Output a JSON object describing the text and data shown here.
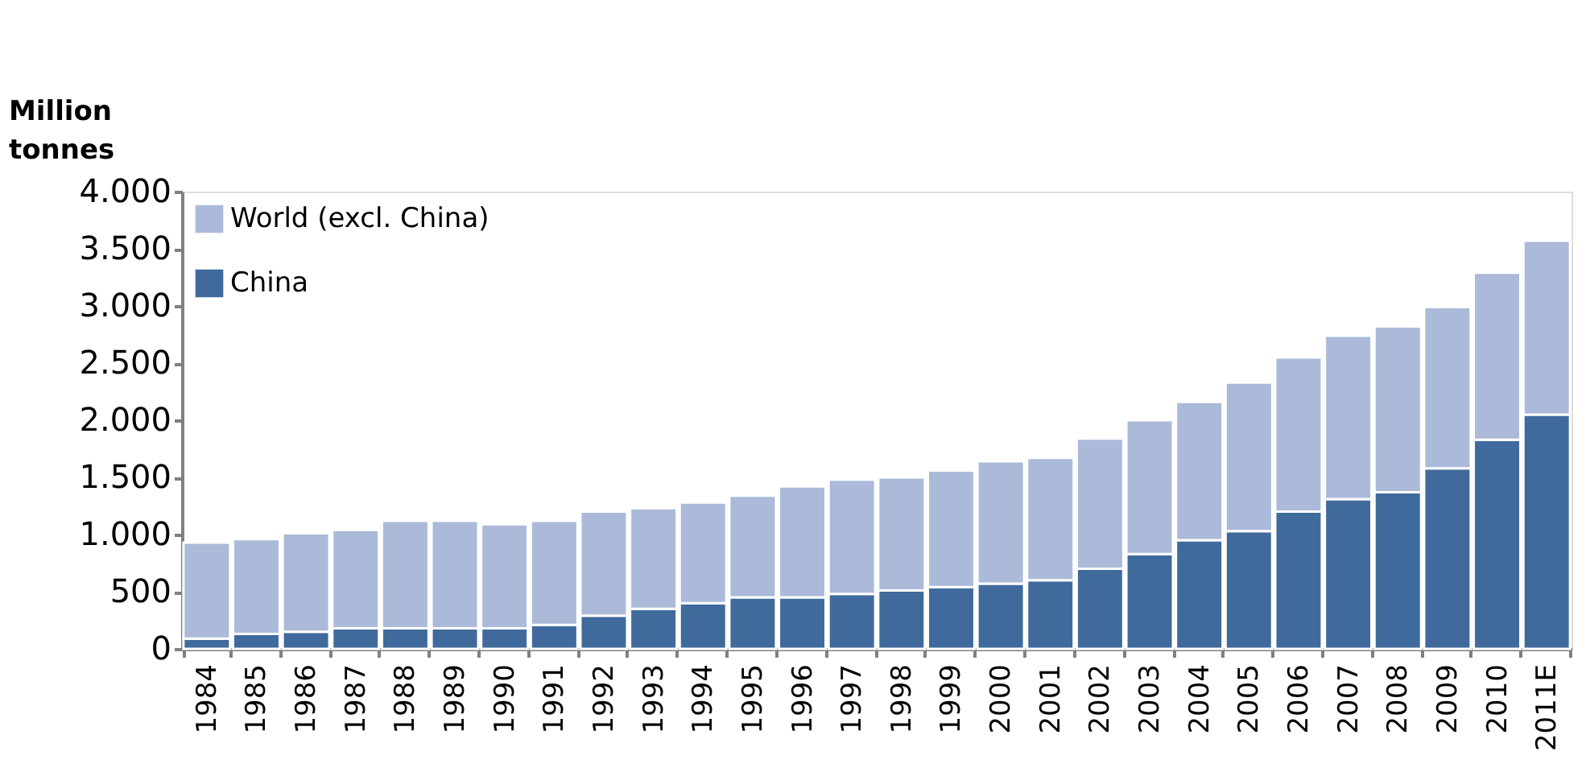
{
  "chart_data": {
    "type": "bar",
    "stacked": true,
    "ylabel": "Million tonnes",
    "categories": [
      "1984",
      "1985",
      "1986",
      "1987",
      "1988",
      "1989",
      "1990",
      "1991",
      "1992",
      "1993",
      "1994",
      "1995",
      "1996",
      "1997",
      "1998",
      "1999",
      "2000",
      "2001",
      "2002",
      "2003",
      "2004",
      "2005",
      "2006",
      "2007",
      "2008",
      "2009",
      "2010",
      "2011E"
    ],
    "series": [
      {
        "name": "China",
        "color": "#406a9c",
        "values": [
          90,
          130,
          150,
          180,
          180,
          180,
          180,
          210,
          290,
          350,
          400,
          450,
          450,
          480,
          510,
          540,
          570,
          600,
          700,
          830,
          950,
          1030,
          1200,
          1310,
          1370,
          1580,
          1830,
          2050
        ]
      },
      {
        "name": "World (excl. China)",
        "color": "#abbad8",
        "values": [
          840,
          830,
          860,
          860,
          940,
          940,
          910,
          910,
          910,
          880,
          880,
          890,
          970,
          1000,
          990,
          1020,
          1070,
          1070,
          1140,
          1170,
          1210,
          1300,
          1350,
          1430,
          1450,
          1410,
          1460,
          1520
        ]
      }
    ],
    "ylim": [
      0,
      4000
    ],
    "yticks": [
      0,
      {
        "value": 500,
        "label": "500"
      },
      {
        "value": 1000,
        "label": "1.000"
      },
      {
        "value": 1500,
        "label": "1.500"
      },
      {
        "value": 2000,
        "label": "2.000"
      },
      {
        "value": 2500,
        "label": "2.500"
      },
      {
        "value": 3000,
        "label": "3.000"
      },
      {
        "value": 3500,
        "label": "3.500"
      },
      {
        "value": 4000,
        "label": "4.000"
      }
    ],
    "grid": false,
    "legend": "top left"
  }
}
